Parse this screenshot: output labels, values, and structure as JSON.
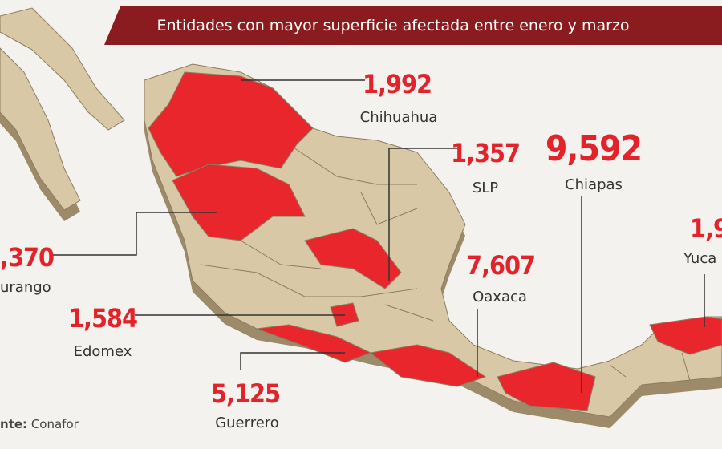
{
  "header": {
    "title": "Entidades con mayor superficie afectada entre enero y marzo"
  },
  "labels": [
    {
      "value": "1,992",
      "name": "Chihuahua"
    },
    {
      "value": "1,357",
      "name": "SLP"
    },
    {
      "value": "9,592",
      "name": "Chiapas"
    },
    {
      "value": "7,607",
      "name": "Oaxaca"
    },
    {
      "value": "5,125",
      "name": "Guerrero"
    },
    {
      "value": "1,584",
      "name": "Edomex"
    },
    {
      "value": ",370",
      "name": "urango"
    },
    {
      "value": "1,9",
      "name": "Yuca"
    }
  ],
  "source": {
    "label": "nte:",
    "text": "Conafor"
  }
}
